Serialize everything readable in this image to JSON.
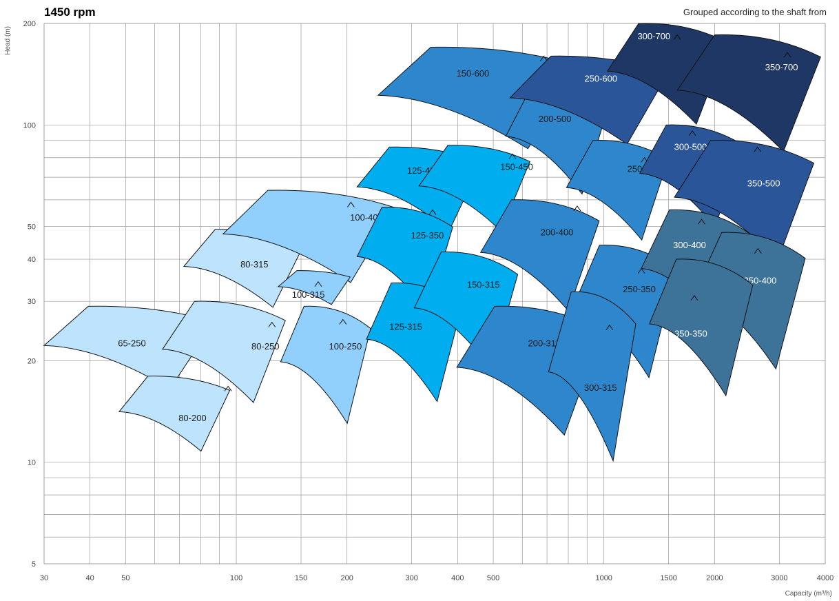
{
  "header": {
    "title": "1450 rpm",
    "subtitle": "Grouped according to the shaft from"
  },
  "chart_data": {
    "type": "area",
    "title": "1450 rpm",
    "subtitle": "Grouped according to the shaft from",
    "xlabel": "Capacity (m³/h)",
    "ylabel": "Head (m)",
    "xscale": "log",
    "yscale": "log",
    "xlim": [
      30,
      4000
    ],
    "ylim": [
      5,
      200
    ],
    "grid": true,
    "xticks": [
      30,
      40,
      50,
      100,
      150,
      200,
      300,
      400,
      500,
      1000,
      1500,
      2000,
      3000,
      4000
    ],
    "xtick_labels": [
      "30",
      "40",
      "50",
      "100",
      "150",
      "200",
      "300",
      "400",
      "500",
      "1000",
      "1500",
      "2000",
      "3000",
      "4000"
    ],
    "yticks": [
      5,
      10,
      20,
      30,
      40,
      50,
      100,
      200
    ],
    "ytick_labels": [
      "5",
      "10",
      "20",
      "30",
      "40",
      "50",
      "100",
      "200"
    ],
    "group_colors": {
      "group1": "#bde3fd",
      "group2": "#91d0fd",
      "group3": "#00aeef",
      "group4": "#2e87cc",
      "group5": "#3d7299",
      "group6": "#2a5598",
      "group7": "#1f3764"
    },
    "series": [
      {
        "name": "65-250",
        "group": "group1",
        "q_min": 30,
        "q_max": 87,
        "h_top": 29,
        "h_bottom": 16,
        "label_q": 52,
        "label_h": 22.5,
        "bep_q": 74,
        "bep_h": 26.8
      },
      {
        "name": "80-250",
        "group": "group1",
        "q_min": 63,
        "q_max": 136,
        "h_top": 30,
        "h_bottom": 14.5,
        "label_q": 120,
        "label_h": 22,
        "bep_q": 125,
        "bep_h": 26
      },
      {
        "name": "80-200",
        "group": "group1",
        "q_min": 48,
        "q_max": 96,
        "h_top": 18,
        "h_bottom": 10.5,
        "label_q": 76,
        "label_h": 13.5,
        "bep_q": 95,
        "bep_h": 16.8
      },
      {
        "name": "80-315",
        "group": "group1",
        "q_min": 72,
        "q_max": 153,
        "h_top": 49,
        "h_bottom": 28,
        "label_q": 112,
        "label_h": 38.5,
        "bep_q": 143,
        "bep_h": 45.5
      },
      {
        "name": "100-400",
        "group": "group2",
        "q_min": 92,
        "q_max": 271,
        "h_top": 64,
        "h_bottom": 33,
        "label_q": 226,
        "label_h": 53,
        "bep_q": 205,
        "bep_h": 59
      },
      {
        "name": "100-315",
        "group": "group2",
        "q_min": 130,
        "q_max": 204,
        "h_top": 37,
        "h_bottom": 29,
        "label_q": 157,
        "label_h": 31.3,
        "bep_q": 167,
        "bep_h": 34.3
      },
      {
        "name": "100-250",
        "group": "group2",
        "q_min": 132,
        "q_max": 232,
        "h_top": 29,
        "h_bottom": 12.5,
        "label_q": 198,
        "label_h": 22,
        "bep_q": 195,
        "bep_h": 26.5
      },
      {
        "name": "125-450",
        "group": "group3",
        "q_min": 213,
        "q_max": 464,
        "h_top": 86,
        "h_bottom": 47,
        "label_q": 323,
        "label_h": 73,
        "bep_q": 416,
        "bep_h": 81
      },
      {
        "name": "125-350",
        "group": "group3",
        "q_min": 213,
        "q_max": 388,
        "h_top": 57,
        "h_bottom": 27,
        "label_q": 331,
        "label_h": 47,
        "bep_q": 342,
        "bep_h": 56
      },
      {
        "name": "125-315",
        "group": "group3",
        "q_min": 226,
        "q_max": 411,
        "h_top": 34,
        "h_bottom": 14.5,
        "label_q": 289,
        "label_h": 25.2,
        "bep_q": 335,
        "bep_h": 30.7
      },
      {
        "name": "150-450",
        "group": "group3",
        "q_min": 314,
        "q_max": 629,
        "h_top": 87,
        "h_bottom": 47,
        "label_q": 579,
        "label_h": 75,
        "bep_q": 564,
        "bep_h": 82
      },
      {
        "name": "150-315",
        "group": "group3",
        "q_min": 305,
        "q_max": 583,
        "h_top": 42,
        "h_bottom": 18,
        "label_q": 470,
        "label_h": 33.5,
        "bep_q": 551,
        "bep_h": 42
      },
      {
        "name": "150-600",
        "group": "group4",
        "q_min": 243,
        "q_max": 864,
        "h_top": 170,
        "h_bottom": 82,
        "label_q": 440,
        "label_h": 142,
        "bep_q": 686,
        "bep_h": 160
      },
      {
        "name": "200-500",
        "group": "group4",
        "q_min": 541,
        "q_max": 1031,
        "h_top": 132,
        "h_bottom": 60,
        "label_q": 736,
        "label_h": 104,
        "bep_q": 852,
        "bep_h": 112
      },
      {
        "name": "200-400",
        "group": "group4",
        "q_min": 462,
        "q_max": 971,
        "h_top": 60,
        "h_bottom": 27,
        "label_q": 745,
        "label_h": 48,
        "bep_q": 846,
        "bep_h": 57.5
      },
      {
        "name": "200-315",
        "group": "group4",
        "q_min": 398,
        "q_max": 989,
        "h_top": 29,
        "h_bottom": 11.5,
        "label_q": 689,
        "label_h": 22.5,
        "bep_q": 811,
        "bep_h": 26.8
      },
      {
        "name": "250-600",
        "group": "group6",
        "q_min": 555,
        "q_max": 1496,
        "h_top": 160,
        "h_bottom": 85,
        "label_q": 981,
        "label_h": 137,
        "bep_q": 1196,
        "bep_h": 150
      },
      {
        "name": "250-450",
        "group": "group4",
        "q_min": 791,
        "q_max": 1496,
        "h_top": 90,
        "h_bottom": 44,
        "label_q": 1283,
        "label_h": 74,
        "bep_q": 1289,
        "bep_h": 80
      },
      {
        "name": "250-350",
        "group": "group4",
        "q_min": 822,
        "q_max": 1569,
        "h_top": 44,
        "h_bottom": 17,
        "label_q": 1248,
        "label_h": 32.5,
        "bep_q": 1265,
        "bep_h": 37.5
      },
      {
        "name": "300-315",
        "group": "group4",
        "q_min": 707,
        "q_max": 1221,
        "h_top": 32,
        "h_bottom": 9.5,
        "label_q": 979,
        "label_h": 16.6,
        "bep_q": 1036,
        "bep_h": 25.5
      },
      {
        "name": "300-700",
        "group": "group7",
        "q_min": 1022,
        "q_max": 2171,
        "h_top": 200,
        "h_bottom": 97,
        "label_q": 1368,
        "label_h": 183,
        "bep_q": 1583,
        "bep_h": 185
      },
      {
        "name": "350-700",
        "group": "group7",
        "q_min": 1585,
        "q_max": 3887,
        "h_top": 185,
        "h_bottom": 80,
        "label_q": 3043,
        "label_h": 148,
        "bep_q": 3156,
        "bep_h": 164
      },
      {
        "name": "300-500",
        "group": "group6",
        "q_min": 1252,
        "q_max": 2371,
        "h_top": 100,
        "h_bottom": 48,
        "label_q": 1721,
        "label_h": 86,
        "bep_q": 1740,
        "bep_h": 96
      },
      {
        "name": "350-500",
        "group": "group6",
        "q_min": 1555,
        "q_max": 3725,
        "h_top": 90,
        "h_bottom": 38,
        "label_q": 2720,
        "label_h": 67,
        "bep_q": 2618,
        "bep_h": 86
      },
      {
        "name": "300-400",
        "group": "group5",
        "q_min": 1264,
        "q_max": 2484,
        "h_top": 56,
        "h_bottom": 23,
        "label_q": 1710,
        "label_h": 44,
        "bep_q": 1844,
        "bep_h": 52.5
      },
      {
        "name": "350-400",
        "group": "group5",
        "q_min": 1740,
        "q_max": 3530,
        "h_top": 48,
        "h_bottom": 18,
        "label_q": 2661,
        "label_h": 34.5,
        "bep_q": 2625,
        "bep_h": 43
      },
      {
        "name": "350-350",
        "group": "group5",
        "q_min": 1330,
        "q_max": 2540,
        "h_top": 40,
        "h_bottom": 15,
        "label_q": 1724,
        "label_h": 24,
        "bep_q": 1762,
        "bep_h": 31.2
      }
    ]
  }
}
